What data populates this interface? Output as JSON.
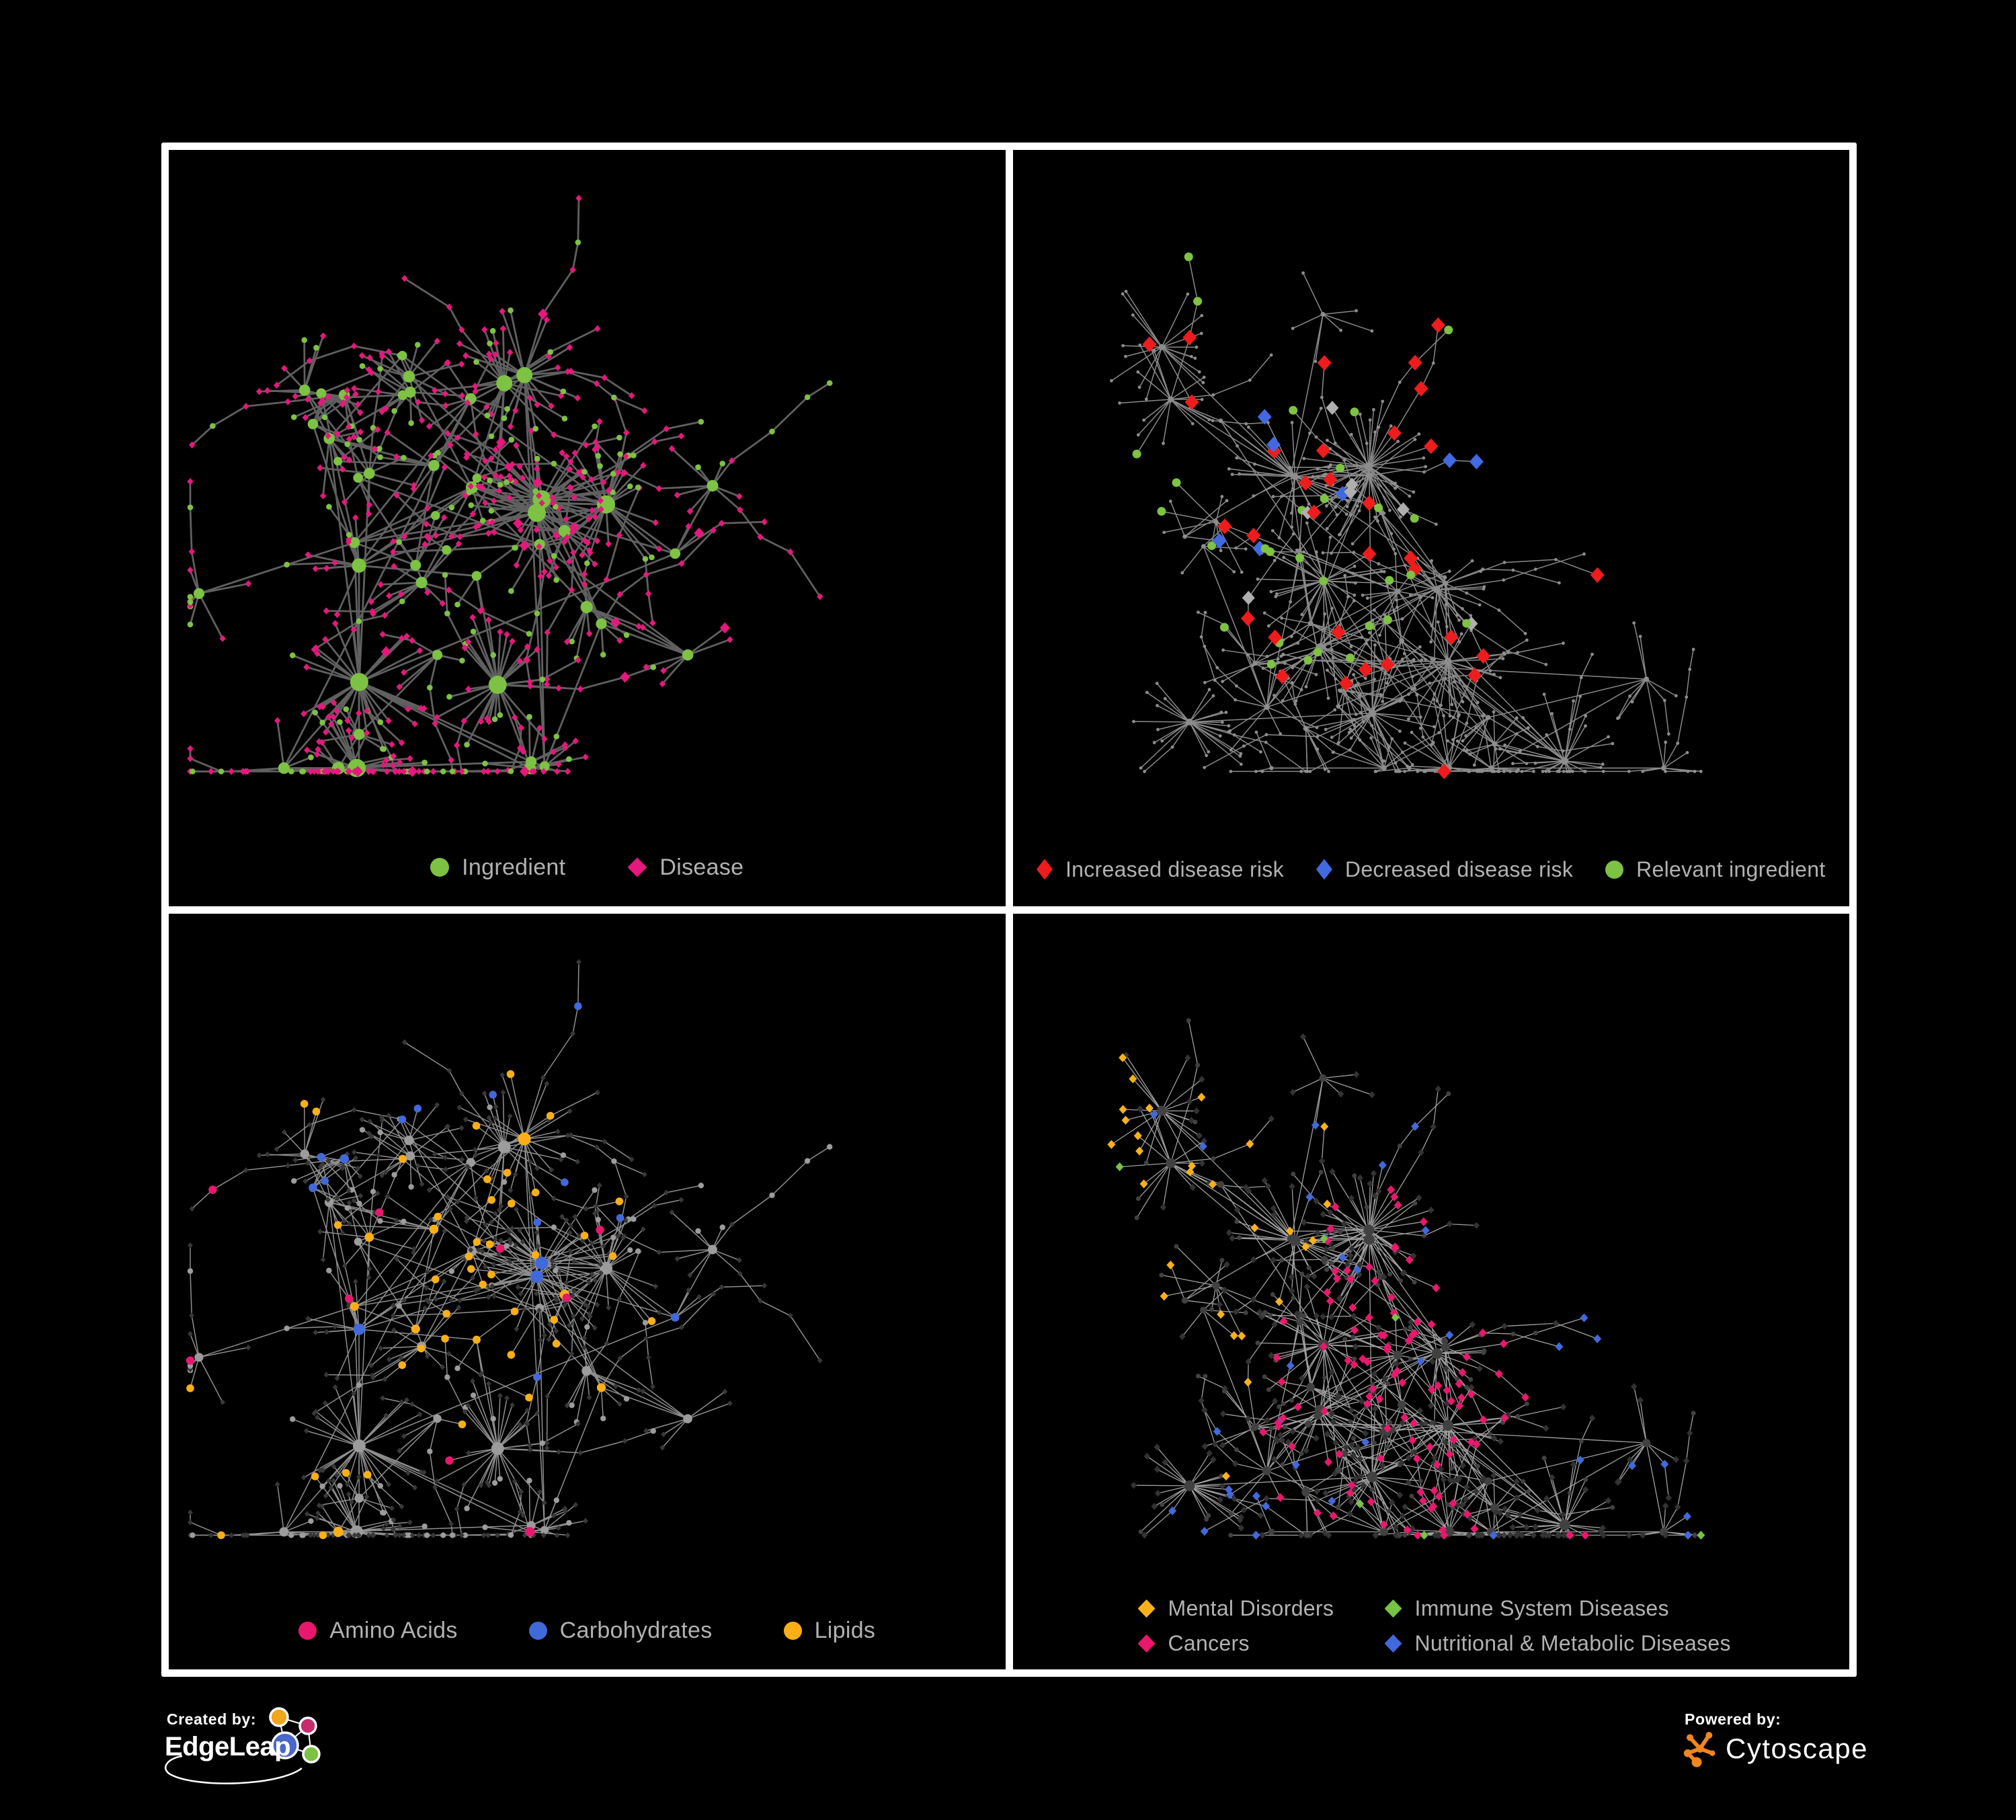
{
  "figure": {
    "background": "#000000",
    "frame_color": "#ffffff",
    "legend_text_color": "#B2B2B2"
  },
  "panels": [
    {
      "id": "ingredient-disease-network",
      "legend": [
        {
          "label": "Ingredient",
          "shape": "circle",
          "color": "#7DC242"
        },
        {
          "label": "Disease",
          "shape": "diamond",
          "color": "#E5187D"
        }
      ],
      "network": {
        "seed": 42,
        "scheme": "bipartite",
        "edge_color": "#606060",
        "edge_width": 2.8,
        "colors": {
          "ingredient": "#7DC242",
          "disease": "#E5187D"
        }
      }
    },
    {
      "id": "disease-risk-network",
      "legend": [
        {
          "label": "Increased disease risk",
          "shape": "diamond",
          "color": "#EE1C1C"
        },
        {
          "label": "Decreased disease risk",
          "shape": "diamond",
          "color": "#4169E1"
        },
        {
          "label": "Relevant ingredient",
          "shape": "circle",
          "color": "#7DC242"
        }
      ],
      "network": {
        "seed": 1337,
        "scheme": "risk",
        "edge_color": "#8A8A8A",
        "edge_width": 1.5,
        "colors": {
          "base": "#8D8D8D",
          "increased": "#EE1C1C",
          "decreased": "#4169E1",
          "neutral": "#AFAFAF",
          "ingredient": "#7DC242"
        },
        "counts": {
          "increased": 30,
          "decreased": 7,
          "neutral": 7,
          "ingredient": 26
        }
      }
    },
    {
      "id": "nutrient-category-network",
      "legend": [
        {
          "label": "Amino Acids",
          "shape": "circle",
          "color": "#E8186D"
        },
        {
          "label": "Carbohydrates",
          "shape": "circle",
          "color": "#4169DB"
        },
        {
          "label": "Lipids",
          "shape": "circle",
          "color": "#FBAF17"
        }
      ],
      "network": {
        "seed": 42,
        "scheme": "nutrient",
        "edge_color": "#8F8F8F",
        "edge_width": 1.5,
        "colors": {
          "disease": "#383838",
          "ingredient": "#9C9C9C",
          "amino": "#E8186D",
          "carbohydrate": "#4169DB",
          "lipid": "#FBAF17"
        }
      }
    },
    {
      "id": "disease-category-network",
      "legend": [
        {
          "label": "Mental Disorders",
          "shape": "diamond",
          "color": "#FBB11B"
        },
        {
          "label": "Immune System Diseases",
          "shape": "diamond",
          "color": "#77C344"
        },
        {
          "label": "Cancers",
          "shape": "diamond",
          "color": "#E8186D"
        },
        {
          "label": "Nutritional & Metabolic Diseases",
          "shape": "diamond",
          "color": "#4169DB"
        }
      ],
      "network": {
        "seed": 1337,
        "scheme": "category",
        "edge_color": "#A0A0A0",
        "edge_width": 1.3,
        "colors": {
          "ingredient": "#414141",
          "disease": "#333333",
          "mental": "#FBB11B",
          "immune": "#77C344",
          "cancer": "#E8186D",
          "metabolic": "#4169DB"
        }
      }
    }
  ],
  "footer": {
    "created_by_label": "Created by:",
    "created_by_brand": "EdgeLeap",
    "powered_by_label": "Powered by:",
    "powered_by_brand": "Cytoscape",
    "edgeleap_logo_colors": {
      "orange": "#F2A51F",
      "magenta": "#C72B6E",
      "blue": "#4A67C9",
      "green": "#7CC243",
      "outline": "#ffffff"
    },
    "cytoscape_logo_color": "#F0861E"
  }
}
